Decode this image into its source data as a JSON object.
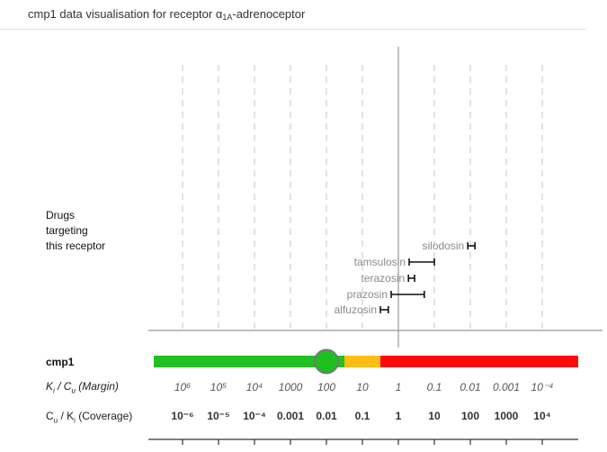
{
  "header": {
    "title_prefix": "cmp1 data visualisation for receptor α",
    "title_sub": "1A",
    "title_suffix": "-adrenoceptor"
  },
  "labels": {
    "drugs_line1": "Drugs",
    "drugs_line2": "targeting",
    "drugs_line3": "this receptor",
    "compound": "cmp1",
    "margin_k": "K",
    "margin_k_sub": "i",
    "margin_mid": " / C",
    "margin_c_sub": "u",
    "margin_tail": " (Margin)",
    "coverage_c": "C",
    "coverage_c_sub": "u",
    "coverage_mid": " / K",
    "coverage_k_sub": "i",
    "coverage_tail": " (Coverage)"
  },
  "chart_data": {
    "type": "scatter",
    "x_scale": "log10",
    "x_label_margin": "Ki / Cu (Margin)",
    "x_label_coverage": "Cu / Ki (Coverage)",
    "xlim_log10_coverage": [
      -6.8,
      5.0
    ],
    "gridlines_log10_coverage": [
      -6,
      -5,
      -4,
      -3,
      -2,
      -1,
      0,
      1,
      2,
      3,
      4
    ],
    "grid": true,
    "margin_ticks": [
      "10⁶",
      "10⁵",
      "10⁴",
      "1000",
      "100",
      "10",
      "1",
      "0.1",
      "0.01",
      "0.001",
      "10⁻⁴"
    ],
    "coverage_ticks": [
      "10⁻⁶",
      "10⁻⁵",
      "10⁻⁴",
      "0.001",
      "0.01",
      "0.1",
      "1",
      "10",
      "100",
      "1000",
      "10⁴"
    ],
    "reference_line_log10_coverage": 0,
    "drugs": [
      {
        "name": "silodosin",
        "low": 1.93,
        "high": 2.13
      },
      {
        "name": "tamsulosin",
        "low": 0.3,
        "high": 1.0
      },
      {
        "name": "terazosin",
        "low": 0.28,
        "high": 0.45
      },
      {
        "name": "prazosin",
        "low": -0.2,
        "high": 0.72
      },
      {
        "name": "alfuzosin",
        "low": -0.5,
        "high": -0.28
      }
    ],
    "compound": {
      "name": "cmp1",
      "value_log10_coverage": -2.0,
      "value_label": "0.01",
      "bands": [
        {
          "from": -6.8,
          "to": -1.5,
          "color": "#22c022"
        },
        {
          "from": -1.5,
          "to": -0.5,
          "color": "#ffbd15"
        },
        {
          "from": -0.5,
          "to": 5.0,
          "color": "#ff0a0a"
        }
      ],
      "marker_color": "#1fbf1f",
      "marker_stroke": "#777777"
    }
  }
}
